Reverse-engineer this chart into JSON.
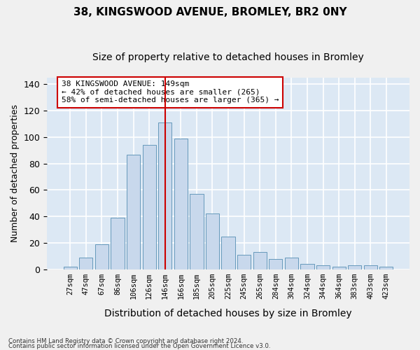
{
  "title1": "38, KINGSWOOD AVENUE, BROMLEY, BR2 0NY",
  "title2": "Size of property relative to detached houses in Bromley",
  "xlabel": "Distribution of detached houses by size in Bromley",
  "ylabel": "Number of detached properties",
  "categories": [
    "27sqm",
    "47sqm",
    "67sqm",
    "86sqm",
    "106sqm",
    "126sqm",
    "146sqm",
    "166sqm",
    "185sqm",
    "205sqm",
    "225sqm",
    "245sqm",
    "265sqm",
    "284sqm",
    "304sqm",
    "324sqm",
    "344sqm",
    "364sqm",
    "383sqm",
    "403sqm",
    "423sqm"
  ],
  "values": [
    2,
    9,
    19,
    39,
    87,
    94,
    111,
    99,
    57,
    42,
    25,
    11,
    13,
    8,
    9,
    4,
    3,
    2,
    3,
    3,
    2
  ],
  "bar_color": "#c8d8ec",
  "bar_edge_color": "#6699bb",
  "vline_index": 6,
  "vline_color": "#cc0000",
  "annotation_line1": "38 KINGSWOOD AVENUE: 149sqm",
  "annotation_line2": "← 42% of detached houses are smaller (265)",
  "annotation_line3": "58% of semi-detached houses are larger (365) →",
  "annotation_box_facecolor": "#ffffff",
  "annotation_box_edgecolor": "#cc0000",
  "footer1": "Contains HM Land Registry data © Crown copyright and database right 2024.",
  "footer2": "Contains public sector information licensed under the Open Government Licence v3.0.",
  "ylim": [
    0,
    145
  ],
  "bg_color": "#dce8f4",
  "grid_color": "#ffffff",
  "fig_bg_color": "#f0f0f0",
  "title1_fontsize": 11,
  "title2_fontsize": 10,
  "tick_fontsize": 7.5,
  "ylabel_fontsize": 9,
  "xlabel_fontsize": 10,
  "yticks": [
    0,
    20,
    40,
    60,
    80,
    100,
    120,
    140
  ]
}
